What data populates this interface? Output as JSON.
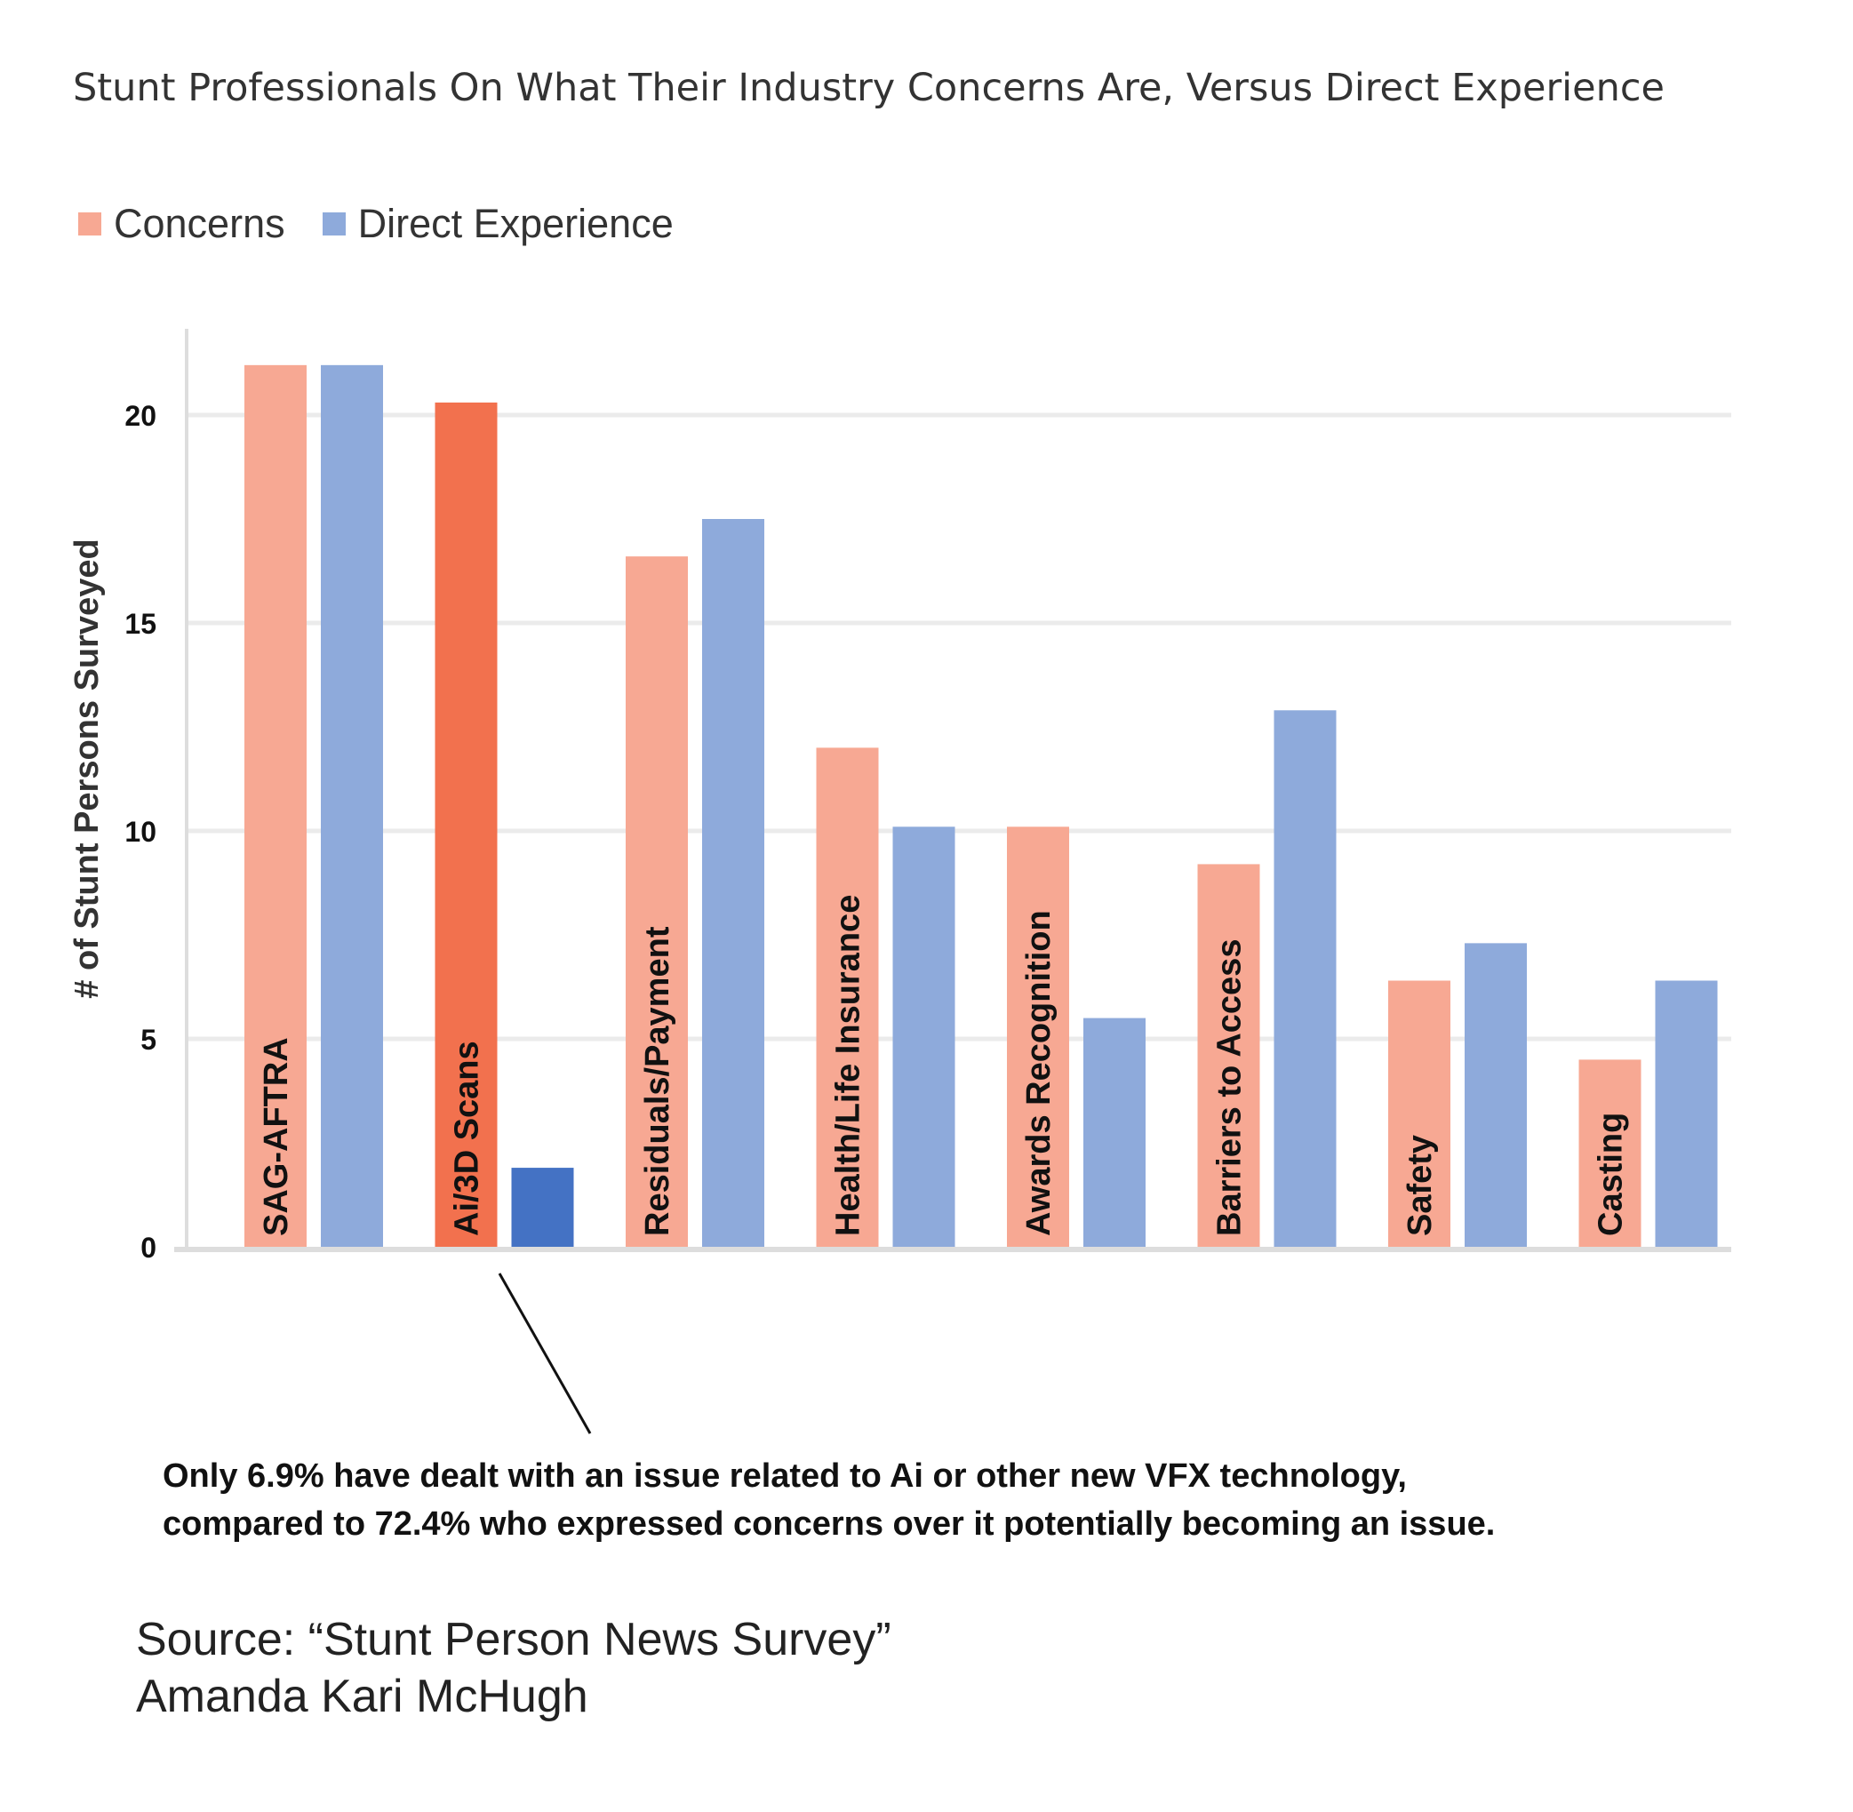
{
  "chart_data": {
    "type": "bar",
    "title": "Stunt Professionals On What Their Industry Concerns Are, Versus Direct Experience",
    "ylabel": "#   of Stunt Persons Surveyed",
    "xlabel": "",
    "ylim": [
      0,
      22
    ],
    "yticks": [
      0,
      5,
      10,
      15,
      20
    ],
    "grid": true,
    "legend_position": "top-left",
    "categories": [
      "SAG-AFTRA",
      "Ai/3D Scans",
      "Residuals/Payment",
      "Health/Life Insurance",
      "Awards Recognition",
      "Barriers to Access",
      "Safety",
      "Casting"
    ],
    "series": [
      {
        "name": "Concerns",
        "color": "#f7a893",
        "values": [
          21.2,
          20.3,
          16.6,
          12.0,
          10.1,
          9.2,
          6.4,
          4.5
        ]
      },
      {
        "name": "Direct Experience",
        "color": "#8eaadb",
        "values": [
          21.2,
          1.9,
          17.5,
          10.1,
          5.5,
          12.9,
          7.3,
          6.4
        ]
      }
    ],
    "highlight": {
      "category": "Ai/3D Scans",
      "colors": {
        "Concerns": "#f2714e",
        "Direct Experience": "#4472c4"
      }
    },
    "annotation": {
      "lines": [
        "Only 6.9% have dealt with an issue related to Ai or other new VFX technology,",
        "compared to 72.4% who expressed concerns over it potentially becoming an issue."
      ]
    }
  },
  "source": {
    "line1": "Source: “Stunt Person News Survey”",
    "line2": "Amanda Kari McHugh"
  },
  "colors": {
    "grid": "#ebebeb",
    "axis": "#dddddd",
    "text": "#333333"
  }
}
